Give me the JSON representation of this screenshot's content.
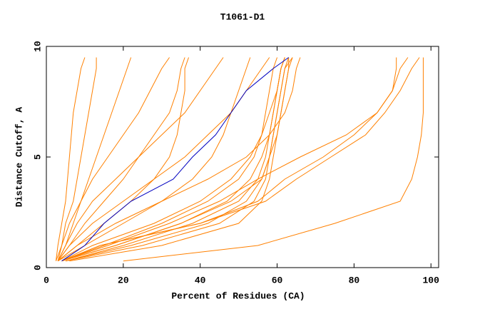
{
  "chart_data": {
    "type": "line",
    "title": "T1061-D1",
    "x_label": "Percent of Residues (CA)",
    "y_label": "Distance Cutoff, A",
    "xlim": [
      0,
      102
    ],
    "ylim": [
      0,
      10
    ],
    "xticks": [
      0,
      20,
      40,
      60,
      80,
      100
    ],
    "yticks": [
      0,
      5,
      10
    ],
    "series": [
      {
        "color": "#ff8000",
        "x": [
          2.5,
          3,
          4,
          5,
          5.5,
          6,
          6.5,
          7,
          8,
          9,
          10
        ],
        "values": [
          0.3,
          1,
          2,
          3,
          4,
          5,
          6,
          7,
          8,
          9,
          9.5
        ]
      },
      {
        "color": "#ff8000",
        "x": [
          3,
          4,
          5,
          7,
          8,
          9,
          10,
          11,
          12,
          13,
          13
        ],
        "values": [
          0.3,
          1,
          2,
          3,
          4,
          5,
          6,
          7,
          8,
          9,
          9.5
        ]
      },
      {
        "color": "#ff8000",
        "x": [
          3,
          5,
          7,
          9,
          11,
          13,
          15,
          17,
          19,
          21,
          22
        ],
        "values": [
          0.3,
          1,
          2,
          3,
          4,
          5,
          6,
          7,
          8,
          9,
          9.5
        ]
      },
      {
        "color": "#ff8000",
        "x": [
          3,
          6,
          10,
          15,
          20,
          24,
          28,
          32,
          34,
          35,
          36
        ],
        "values": [
          0.3,
          1,
          2,
          3,
          4,
          5,
          6,
          7,
          8,
          9,
          9.5
        ]
      },
      {
        "color": "#ff8000",
        "x": [
          3,
          8,
          15,
          22,
          28,
          32,
          34,
          35,
          36,
          36,
          37
        ],
        "values": [
          0.3,
          1,
          2,
          3,
          4,
          5,
          6,
          7,
          8,
          9,
          9.5
        ]
      },
      {
        "color": "#ff8000",
        "x": [
          3,
          10,
          20,
          30,
          38,
          43,
          46,
          48,
          50,
          52,
          53
        ],
        "values": [
          0.3,
          1,
          2,
          3,
          4,
          5,
          6,
          7,
          8,
          9,
          9.5
        ]
      },
      {
        "color": "#ff8000",
        "x": [
          4,
          15,
          30,
          42,
          50,
          54,
          56,
          57,
          58,
          59,
          60
        ],
        "values": [
          0.3,
          1,
          2,
          3,
          4,
          5,
          6,
          7,
          8,
          9,
          9.5
        ]
      },
      {
        "color": "#ff8000",
        "x": [
          5,
          20,
          38,
          50,
          55,
          57,
          58,
          59,
          60,
          61,
          62
        ],
        "values": [
          0.3,
          1,
          2,
          3,
          4,
          5,
          6,
          7,
          8,
          9,
          9.5
        ]
      },
      {
        "color": "#ff8000",
        "x": [
          5,
          25,
          45,
          54,
          57,
          58,
          59,
          60,
          61,
          62,
          63
        ],
        "values": [
          0.3,
          1,
          2,
          3,
          4,
          5,
          6,
          7,
          8,
          9,
          9.5
        ]
      },
      {
        "color": "#ff8000",
        "x": [
          4,
          18,
          35,
          47,
          53,
          56,
          58,
          59,
          60,
          61,
          62
        ],
        "values": [
          0.3,
          1,
          2,
          3,
          4,
          5,
          6,
          7,
          8,
          9,
          9.5
        ]
      },
      {
        "color": "#ff8000",
        "x": [
          6,
          30,
          50,
          56,
          58,
          59,
          60,
          61,
          62,
          63,
          64
        ],
        "values": [
          0.3,
          1,
          2,
          3,
          4,
          5,
          6,
          7,
          8,
          9,
          9.5
        ]
      },
      {
        "color": "#ff8000",
        "x": [
          4,
          12,
          28,
          40,
          48,
          53,
          56,
          58,
          60,
          61,
          62
        ],
        "values": [
          0.3,
          1,
          2,
          3,
          4,
          5,
          6,
          7,
          8,
          9,
          9.5
        ]
      },
      {
        "color": "#ff8000",
        "x": [
          5,
          22,
          42,
          52,
          56,
          58,
          59,
          60,
          61,
          62,
          64
        ],
        "values": [
          0.3,
          1,
          2,
          3,
          4,
          5,
          6,
          7,
          8,
          9,
          9.5
        ]
      },
      {
        "color": "#ff8000",
        "x": [
          4,
          14,
          40,
          55,
          62,
          72,
          80,
          86,
          90,
          92,
          94
        ],
        "values": [
          0.3,
          1,
          2,
          3,
          4,
          5,
          6,
          7,
          8,
          9,
          9.5
        ]
      },
      {
        "color": "#ff8000",
        "x": [
          4,
          14,
          40,
          57,
          65,
          74,
          83,
          88,
          92,
          95,
          97
        ],
        "values": [
          0.3,
          1,
          2,
          3,
          4,
          5,
          6,
          7,
          8,
          9,
          9.5
        ]
      },
      {
        "color": "#ff8000",
        "x": [
          20,
          55,
          75,
          92,
          95,
          96.5,
          97.5,
          98,
          98,
          98,
          98
        ],
        "values": [
          0.3,
          1,
          2,
          3,
          4,
          5,
          6,
          7,
          8,
          9,
          9.5
        ]
      },
      {
        "color": "#ff8000",
        "x": [
          3,
          8,
          18,
          30,
          42,
          52,
          58,
          62,
          64,
          65,
          66
        ],
        "values": [
          0.3,
          1,
          2,
          3,
          4,
          5,
          6,
          7,
          8,
          9,
          9.5
        ]
      },
      {
        "color": "#ff8000",
        "x": [
          3,
          6,
          12,
          20,
          28,
          36,
          42,
          48,
          52,
          56,
          58
        ],
        "values": [
          0.3,
          1,
          2,
          3,
          4,
          5,
          6,
          7,
          8,
          9,
          9.5
        ]
      },
      {
        "color": "#ff8000",
        "x": [
          2.5,
          4,
          6,
          9,
          12,
          16,
          20,
          24,
          27,
          30,
          32
        ],
        "values": [
          0.3,
          1,
          2,
          3,
          4,
          5,
          6,
          7,
          8,
          9,
          9.5
        ]
      },
      {
        "color": "#ff8000",
        "x": [
          4,
          16,
          32,
          45,
          55,
          66,
          78,
          86,
          90,
          91,
          91
        ],
        "values": [
          0.3,
          1,
          2,
          3,
          4,
          5,
          6,
          7,
          8,
          9,
          9.5
        ]
      },
      {
        "color": "#ff8000",
        "x": [
          3,
          5,
          8,
          12,
          18,
          24,
          30,
          36,
          40,
          44,
          46
        ],
        "values": [
          0.3,
          1,
          2,
          3,
          4,
          5,
          6,
          7,
          8,
          9,
          9.5
        ]
      },
      {
        "color": "#ff8000",
        "x": [
          4,
          18,
          35,
          48,
          56,
          58,
          60,
          61,
          62,
          63,
          63
        ],
        "values": [
          0.3,
          1,
          2,
          3,
          4,
          5,
          6,
          7,
          8,
          9,
          9.5
        ]
      },
      {
        "color": "#0000c0",
        "x": [
          4,
          10,
          15,
          22,
          33,
          38,
          44,
          48,
          52,
          59,
          63
        ],
        "values": [
          0.3,
          1,
          2,
          3,
          4,
          5,
          6,
          7,
          8,
          9,
          9.5
        ]
      }
    ]
  }
}
